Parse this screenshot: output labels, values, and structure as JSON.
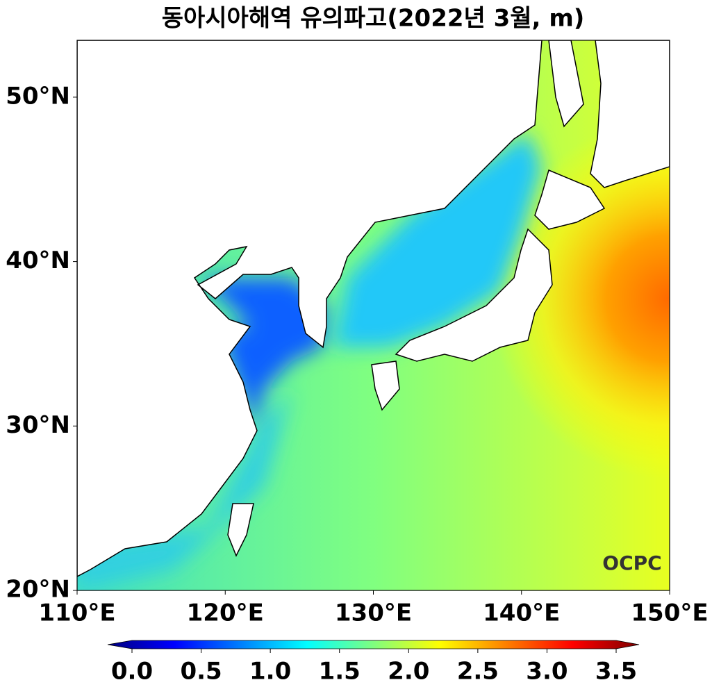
{
  "map": {
    "title": "동아시아해역 유의파고(2022년 3월, m)",
    "xlim": [
      110,
      150
    ],
    "ylim": [
      20,
      53.46
    ],
    "xticks": [
      {
        "value": 110,
        "label": "110°E"
      },
      {
        "value": 120,
        "label": "120°E"
      },
      {
        "value": 130,
        "label": "130°E"
      },
      {
        "value": 140,
        "label": "140°E"
      },
      {
        "value": 150,
        "label": "150°E"
      }
    ],
    "yticks": [
      {
        "value": 20,
        "label": "20°N"
      },
      {
        "value": 30,
        "label": "30°N"
      },
      {
        "value": 40,
        "label": "40°N"
      },
      {
        "value": 50,
        "label": "50°N"
      }
    ],
    "colorbar": {
      "lim": [
        0,
        3.5
      ],
      "ticks": [
        {
          "value": 0,
          "label": "0.0"
        },
        {
          "value": 0.5,
          "label": "0.5"
        },
        {
          "value": 1,
          "label": "1.0"
        },
        {
          "value": 1.5,
          "label": "1.5"
        },
        {
          "value": 2,
          "label": "2.0"
        },
        {
          "value": 2.5,
          "label": "2.5"
        },
        {
          "value": 3,
          "label": "3.0"
        },
        {
          "value": 3.5,
          "label": "3.5"
        }
      ],
      "colors": [
        "#00007f",
        "#0000ff",
        "#007fff",
        "#00ffff",
        "#7fff7f",
        "#ffff00",
        "#ff7f00",
        "#ff0000",
        "#7f0000"
      ]
    },
    "logo": "OCPC"
  }
}
